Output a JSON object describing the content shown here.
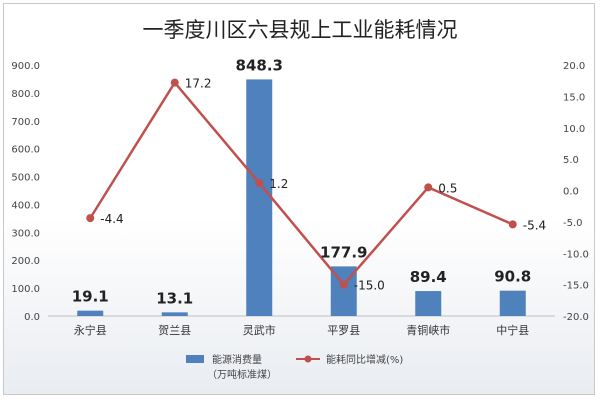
{
  "chart_data": {
    "type": "bar",
    "title": "一季度川区六县规上工业能耗情况",
    "categories": [
      "永宁县",
      "贺兰县",
      "灵武市",
      "平罗县",
      "青铜峡市",
      "中宁县"
    ],
    "series": [
      {
        "name": "能源消费量（万吨标准煤）",
        "name_line1": "能源消费量",
        "name_line2": "（万吨标准煤）",
        "type": "bar",
        "axis": "left",
        "values": [
          19.1,
          13.1,
          848.3,
          177.9,
          89.4,
          90.8
        ],
        "labels": [
          "19.1",
          "13.1",
          "848.3",
          "177.9",
          "89.4",
          "90.8"
        ],
        "color": "#4f81bd"
      },
      {
        "name": "能耗同比增减(%)",
        "type": "line",
        "axis": "right",
        "values": [
          -4.4,
          17.2,
          1.2,
          -15.0,
          0.5,
          -5.4
        ],
        "labels": [
          "-4.4",
          "17.2",
          "1.2",
          "-15.0",
          "0.5",
          "-5.4"
        ],
        "color": "#c0504d"
      }
    ],
    "left_axis": {
      "range": [
        0,
        900
      ],
      "ticks": [
        "0.0",
        "100.0",
        "200.0",
        "300.0",
        "400.0",
        "500.0",
        "600.0",
        "700.0",
        "800.0",
        "900.0"
      ]
    },
    "right_axis": {
      "range": [
        -20,
        20
      ],
      "ticks": [
        "-20.0",
        "-15.0",
        "-10.0",
        "-5.0",
        "0.0",
        "5.0",
        "10.0",
        "15.0",
        "20.0"
      ]
    },
    "grid": false,
    "legend_position": "bottom"
  }
}
